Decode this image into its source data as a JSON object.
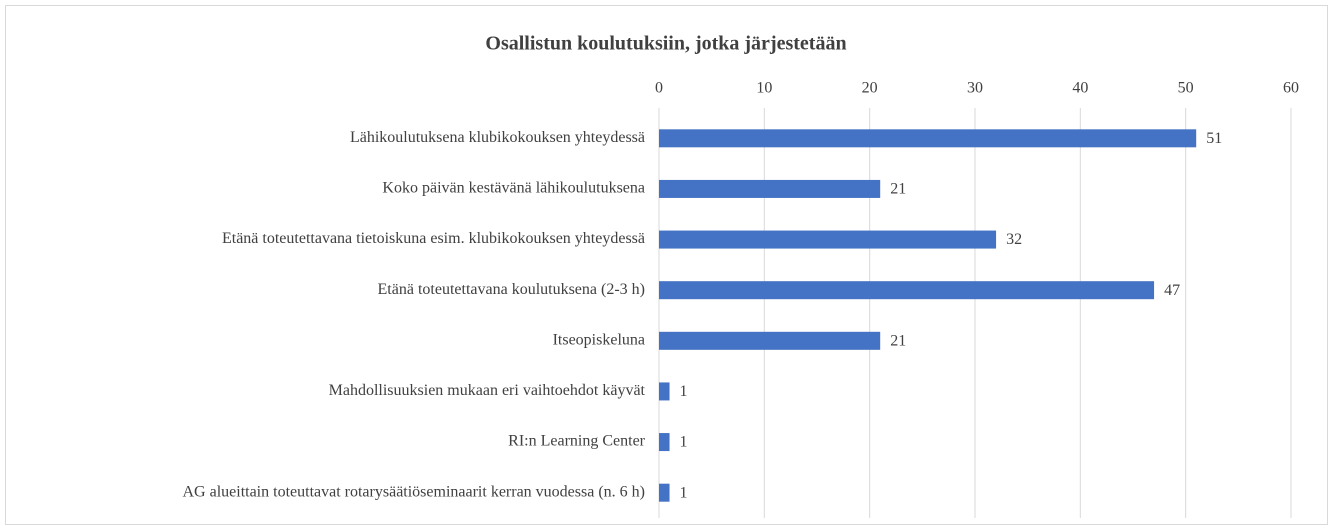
{
  "chart_data": {
    "type": "bar",
    "orientation": "horizontal",
    "title": "Osallistun koulutuksiin, jotka järjestetään",
    "categories": [
      "Lähikoulutuksena klubikokouksen yhteydessä",
      "Koko päivän kestävänä lähikoulutuksena",
      "Etänä toteutettavana tietoiskuna esim. klubikokouksen yhteydessä",
      "Etänä toteutettavana koulutuksena (2-3 h)",
      "Itseopiskeluna",
      "Mahdollisuuksien mukaan eri vaihtoehdot käyvät",
      "RI:n Learning Center",
      "AG alueittain toteuttavat rotarysäätiöseminaarit kerran vuodessa (n. 6 h)"
    ],
    "values": [
      51,
      21,
      32,
      47,
      21,
      1,
      1,
      1
    ],
    "color": "#4472c4",
    "xlim": [
      0,
      60
    ],
    "xticks": [
      0,
      10,
      20,
      30,
      40,
      50,
      60
    ],
    "grid": true
  }
}
